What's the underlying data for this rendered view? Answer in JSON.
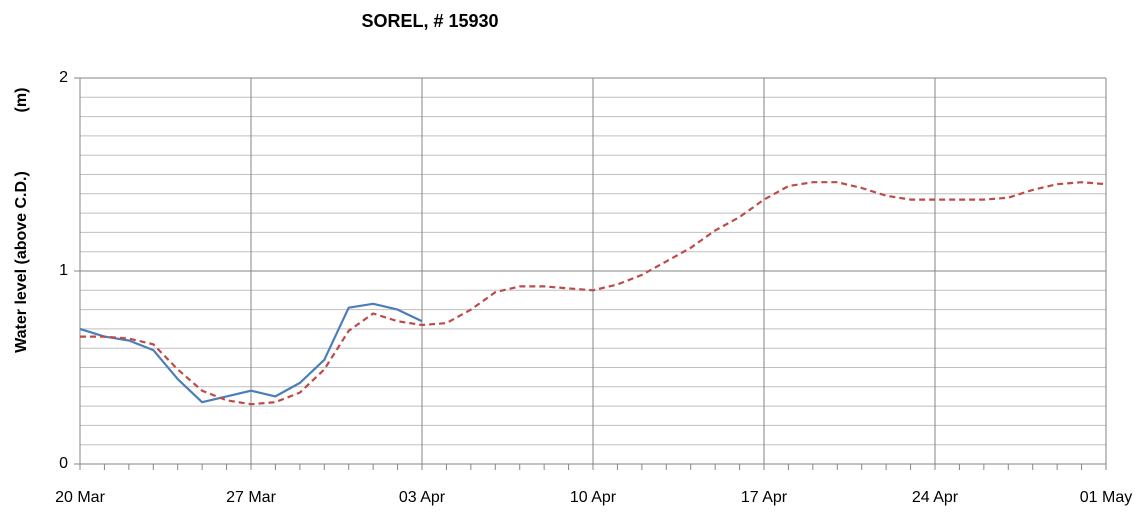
{
  "chart_data": {
    "type": "line",
    "title": "SOREL, # 15930",
    "ylabel": "Water level (above C.D.)",
    "yunit": "(m)",
    "x": [
      "20 Mar",
      "21 Mar",
      "22 Mar",
      "23 Mar",
      "24 Mar",
      "25 Mar",
      "26 Mar",
      "27 Mar",
      "28 Mar",
      "29 Mar",
      "30 Mar",
      "31 Mar",
      "01 Apr",
      "02 Apr",
      "03 Apr",
      "04 Apr",
      "05 Apr",
      "06 Apr",
      "07 Apr",
      "08 Apr",
      "09 Apr",
      "10 Apr",
      "11 Apr",
      "12 Apr",
      "13 Apr",
      "14 Apr",
      "15 Apr",
      "16 Apr",
      "17 Apr",
      "18 Apr",
      "19 Apr",
      "20 Apr",
      "21 Apr",
      "22 Apr",
      "23 Apr",
      "24 Apr",
      "25 Apr",
      "26 Apr",
      "27 Apr",
      "28 Apr",
      "29 Apr",
      "30 Apr",
      "01 May"
    ],
    "xticks": [
      "20 Mar",
      "27 Mar",
      "03 Apr",
      "10 Apr",
      "17 Apr",
      "24 Apr",
      "01 May"
    ],
    "series": [
      {
        "color": "#4a7ebb",
        "dashed": false,
        "values": [
          0.7,
          0.66,
          0.64,
          0.59,
          0.44,
          0.32,
          0.35,
          0.38,
          0.35,
          0.42,
          0.54,
          0.81,
          0.83,
          0.8,
          0.74,
          null,
          null,
          null,
          null,
          null,
          null,
          null,
          null,
          null,
          null,
          null,
          null,
          null,
          null,
          null,
          null,
          null,
          null,
          null,
          null,
          null,
          null,
          null,
          null,
          null,
          null,
          null,
          null
        ]
      },
      {
        "color": "#be4b48",
        "dashed": true,
        "values": [
          0.66,
          0.66,
          0.65,
          0.62,
          0.49,
          0.38,
          0.33,
          0.31,
          0.32,
          0.37,
          0.49,
          0.69,
          0.78,
          0.74,
          0.72,
          0.73,
          0.8,
          0.89,
          0.92,
          0.92,
          0.91,
          0.9,
          0.93,
          0.98,
          1.05,
          1.12,
          1.21,
          1.28,
          1.37,
          1.44,
          1.46,
          1.46,
          1.43,
          1.39,
          1.37,
          1.37,
          1.37,
          1.37,
          1.38,
          1.42,
          1.45,
          1.46,
          1.45
        ]
      }
    ],
    "ylim": [
      0,
      2
    ],
    "yticks": [
      0,
      1,
      2
    ],
    "yminor": [
      0.1,
      0.2,
      0.3,
      0.4,
      0.5,
      0.6,
      0.7,
      0.8,
      0.9,
      1.1,
      1.2,
      1.3,
      1.4,
      1.5,
      1.6,
      1.7,
      1.8,
      1.9
    ],
    "grid": true
  }
}
